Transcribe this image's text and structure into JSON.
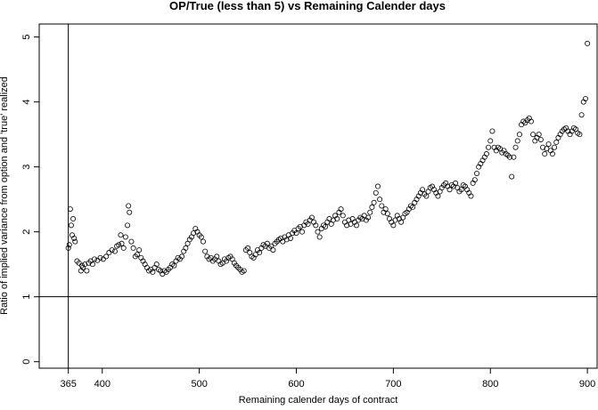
{
  "chart_data": {
    "type": "scatter",
    "title": "OP/True (less than 5) vs Remaining Calender days",
    "xlabel": "Remaining calender days of contract",
    "ylabel": "Ratio of implied variance from option and 'true' realized",
    "xlim": [
      335,
      910
    ],
    "ylim": [
      -0.1,
      5.2
    ],
    "x_ticks": [
      365,
      400,
      500,
      600,
      700,
      800,
      900
    ],
    "y_ticks": [
      0,
      1,
      2,
      3,
      4,
      5
    ],
    "reference_lines": {
      "horizontal": [
        1
      ],
      "vertical": [
        365
      ]
    },
    "grid": false,
    "marker": "open-circle",
    "points": [
      [
        365,
        1.75
      ],
      [
        366,
        1.8
      ],
      [
        367,
        2.35
      ],
      [
        368,
        2.1
      ],
      [
        369,
        1.95
      ],
      [
        370,
        2.2
      ],
      [
        371,
        1.9
      ],
      [
        372,
        1.85
      ],
      [
        374,
        1.55
      ],
      [
        376,
        1.52
      ],
      [
        378,
        1.4
      ],
      [
        379,
        1.48
      ],
      [
        380,
        1.45
      ],
      [
        382,
        1.5
      ],
      [
        384,
        1.4
      ],
      [
        386,
        1.52
      ],
      [
        388,
        1.55
      ],
      [
        390,
        1.5
      ],
      [
        392,
        1.58
      ],
      [
        395,
        1.56
      ],
      [
        398,
        1.6
      ],
      [
        401,
        1.58
      ],
      [
        404,
        1.62
      ],
      [
        407,
        1.68
      ],
      [
        410,
        1.72
      ],
      [
        413,
        1.7
      ],
      [
        415,
        1.78
      ],
      [
        417,
        1.8
      ],
      [
        419,
        1.95
      ],
      [
        420,
        1.82
      ],
      [
        422,
        1.75
      ],
      [
        424,
        1.92
      ],
      [
        426,
        2.1
      ],
      [
        427,
        2.4
      ],
      [
        428,
        2.3
      ],
      [
        430,
        1.85
      ],
      [
        432,
        1.75
      ],
      [
        434,
        1.62
      ],
      [
        436,
        1.65
      ],
      [
        438,
        1.72
      ],
      [
        440,
        1.6
      ],
      [
        442,
        1.55
      ],
      [
        444,
        1.5
      ],
      [
        446,
        1.45
      ],
      [
        448,
        1.4
      ],
      [
        450,
        1.42
      ],
      [
        452,
        1.38
      ],
      [
        454,
        1.45
      ],
      [
        456,
        1.5
      ],
      [
        458,
        1.42
      ],
      [
        460,
        1.4
      ],
      [
        462,
        1.35
      ],
      [
        464,
        1.4
      ],
      [
        466,
        1.38
      ],
      [
        468,
        1.42
      ],
      [
        470,
        1.45
      ],
      [
        472,
        1.5
      ],
      [
        474,
        1.48
      ],
      [
        476,
        1.55
      ],
      [
        478,
        1.6
      ],
      [
        480,
        1.58
      ],
      [
        482,
        1.62
      ],
      [
        484,
        1.7
      ],
      [
        486,
        1.75
      ],
      [
        488,
        1.82
      ],
      [
        490,
        1.88
      ],
      [
        492,
        1.92
      ],
      [
        494,
        1.98
      ],
      [
        496,
        2.05
      ],
      [
        498,
        2.0
      ],
      [
        500,
        1.95
      ],
      [
        502,
        1.92
      ],
      [
        504,
        1.85
      ],
      [
        506,
        1.7
      ],
      [
        508,
        1.62
      ],
      [
        510,
        1.58
      ],
      [
        512,
        1.6
      ],
      [
        514,
        1.55
      ],
      [
        516,
        1.58
      ],
      [
        518,
        1.62
      ],
      [
        520,
        1.55
      ],
      [
        522,
        1.5
      ],
      [
        524,
        1.52
      ],
      [
        526,
        1.58
      ],
      [
        528,
        1.55
      ],
      [
        530,
        1.6
      ],
      [
        532,
        1.62
      ],
      [
        534,
        1.58
      ],
      [
        536,
        1.52
      ],
      [
        538,
        1.48
      ],
      [
        540,
        1.45
      ],
      [
        542,
        1.42
      ],
      [
        544,
        1.38
      ],
      [
        546,
        1.4
      ],
      [
        548,
        1.72
      ],
      [
        550,
        1.75
      ],
      [
        552,
        1.68
      ],
      [
        554,
        1.62
      ],
      [
        556,
        1.6
      ],
      [
        558,
        1.65
      ],
      [
        560,
        1.72
      ],
      [
        562,
        1.68
      ],
      [
        564,
        1.75
      ],
      [
        566,
        1.8
      ],
      [
        568,
        1.78
      ],
      [
        570,
        1.82
      ],
      [
        572,
        1.75
      ],
      [
        574,
        1.78
      ],
      [
        576,
        1.72
      ],
      [
        578,
        1.82
      ],
      [
        580,
        1.85
      ],
      [
        582,
        1.88
      ],
      [
        584,
        1.9
      ],
      [
        586,
        1.85
      ],
      [
        588,
        1.92
      ],
      [
        590,
        1.88
      ],
      [
        592,
        1.95
      ],
      [
        594,
        1.9
      ],
      [
        596,
        1.98
      ],
      [
        598,
        2.02
      ],
      [
        600,
        1.98
      ],
      [
        602,
        2.05
      ],
      [
        604,
        2.08
      ],
      [
        606,
        2.0
      ],
      [
        608,
        2.1
      ],
      [
        610,
        2.15
      ],
      [
        612,
        2.12
      ],
      [
        614,
        2.18
      ],
      [
        616,
        2.22
      ],
      [
        618,
        2.15
      ],
      [
        620,
        2.1
      ],
      [
        622,
        2.0
      ],
      [
        624,
        1.92
      ],
      [
        626,
        2.05
      ],
      [
        628,
        2.1
      ],
      [
        630,
        2.08
      ],
      [
        632,
        2.15
      ],
      [
        634,
        2.2
      ],
      [
        636,
        2.12
      ],
      [
        638,
        2.18
      ],
      [
        640,
        2.25
      ],
      [
        642,
        2.2
      ],
      [
        644,
        2.3
      ],
      [
        646,
        2.35
      ],
      [
        648,
        2.25
      ],
      [
        650,
        2.15
      ],
      [
        652,
        2.1
      ],
      [
        654,
        2.18
      ],
      [
        656,
        2.12
      ],
      [
        658,
        2.2
      ],
      [
        660,
        2.15
      ],
      [
        662,
        2.1
      ],
      [
        664,
        2.18
      ],
      [
        666,
        2.22
      ],
      [
        668,
        2.2
      ],
      [
        670,
        2.25
      ],
      [
        672,
        2.18
      ],
      [
        674,
        2.22
      ],
      [
        676,
        2.3
      ],
      [
        678,
        2.38
      ],
      [
        680,
        2.45
      ],
      [
        682,
        2.6
      ],
      [
        684,
        2.7
      ],
      [
        686,
        2.5
      ],
      [
        688,
        2.4
      ],
      [
        690,
        2.3
      ],
      [
        692,
        2.35
      ],
      [
        694,
        2.28
      ],
      [
        696,
        2.2
      ],
      [
        698,
        2.15
      ],
      [
        700,
        2.1
      ],
      [
        702,
        2.18
      ],
      [
        704,
        2.25
      ],
      [
        706,
        2.2
      ],
      [
        708,
        2.15
      ],
      [
        710,
        2.22
      ],
      [
        712,
        2.28
      ],
      [
        714,
        2.3
      ],
      [
        716,
        2.35
      ],
      [
        718,
        2.4
      ],
      [
        720,
        2.38
      ],
      [
        722,
        2.45
      ],
      [
        724,
        2.5
      ],
      [
        726,
        2.55
      ],
      [
        728,
        2.6
      ],
      [
        730,
        2.65
      ],
      [
        732,
        2.58
      ],
      [
        734,
        2.55
      ],
      [
        736,
        2.62
      ],
      [
        738,
        2.68
      ],
      [
        740,
        2.7
      ],
      [
        742,
        2.65
      ],
      [
        744,
        2.6
      ],
      [
        746,
        2.55
      ],
      [
        748,
        2.62
      ],
      [
        750,
        2.68
      ],
      [
        752,
        2.72
      ],
      [
        754,
        2.75
      ],
      [
        756,
        2.7
      ],
      [
        758,
        2.65
      ],
      [
        760,
        2.72
      ],
      [
        762,
        2.7
      ],
      [
        764,
        2.75
      ],
      [
        766,
        2.68
      ],
      [
        768,
        2.62
      ],
      [
        770,
        2.65
      ],
      [
        772,
        2.72
      ],
      [
        774,
        2.7
      ],
      [
        776,
        2.65
      ],
      [
        778,
        2.6
      ],
      [
        780,
        2.55
      ],
      [
        782,
        2.75
      ],
      [
        784,
        2.8
      ],
      [
        786,
        2.9
      ],
      [
        788,
        3.0
      ],
      [
        790,
        3.05
      ],
      [
        792,
        3.1
      ],
      [
        794,
        3.15
      ],
      [
        796,
        3.2
      ],
      [
        798,
        3.3
      ],
      [
        800,
        3.4
      ],
      [
        802,
        3.55
      ],
      [
        804,
        3.3
      ],
      [
        806,
        3.25
      ],
      [
        808,
        3.3
      ],
      [
        810,
        3.28
      ],
      [
        812,
        3.22
      ],
      [
        814,
        3.25
      ],
      [
        816,
        3.2
      ],
      [
        818,
        3.18
      ],
      [
        820,
        3.15
      ],
      [
        822,
        2.85
      ],
      [
        824,
        3.15
      ],
      [
        826,
        3.3
      ],
      [
        828,
        3.4
      ],
      [
        830,
        3.5
      ],
      [
        832,
        3.65
      ],
      [
        834,
        3.7
      ],
      [
        836,
        3.68
      ],
      [
        838,
        3.72
      ],
      [
        840,
        3.75
      ],
      [
        842,
        3.7
      ],
      [
        844,
        3.5
      ],
      [
        846,
        3.4
      ],
      [
        848,
        3.45
      ],
      [
        850,
        3.5
      ],
      [
        852,
        3.42
      ],
      [
        854,
        3.3
      ],
      [
        856,
        3.2
      ],
      [
        858,
        3.28
      ],
      [
        860,
        3.35
      ],
      [
        862,
        3.25
      ],
      [
        864,
        3.2
      ],
      [
        866,
        3.3
      ],
      [
        868,
        3.38
      ],
      [
        870,
        3.45
      ],
      [
        872,
        3.5
      ],
      [
        874,
        3.55
      ],
      [
        876,
        3.58
      ],
      [
        878,
        3.6
      ],
      [
        880,
        3.55
      ],
      [
        882,
        3.5
      ],
      [
        884,
        3.55
      ],
      [
        886,
        3.6
      ],
      [
        888,
        3.58
      ],
      [
        890,
        3.52
      ],
      [
        892,
        3.5
      ],
      [
        894,
        3.8
      ],
      [
        896,
        4.0
      ],
      [
        898,
        4.05
      ],
      [
        900,
        4.9
      ]
    ]
  }
}
